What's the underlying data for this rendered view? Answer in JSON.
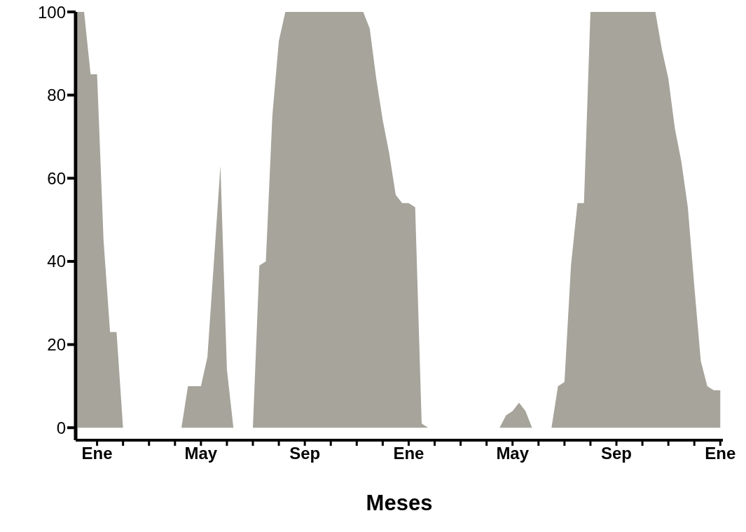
{
  "chart_data": {
    "type": "area",
    "xlabel": "Meses",
    "color": "#a6a49b",
    "categories": [
      null,
      null,
      null,
      "Ene",
      null,
      null,
      null,
      null,
      null,
      null,
      null,
      null,
      null,
      null,
      null,
      null,
      null,
      null,
      null,
      "May",
      null,
      null,
      null,
      null,
      null,
      null,
      null,
      null,
      null,
      null,
      null,
      null,
      null,
      null,
      null,
      "Sep",
      null,
      null,
      null,
      null,
      null,
      null,
      null,
      null,
      null,
      null,
      null,
      null,
      null,
      null,
      null,
      "Ene",
      null,
      null,
      null,
      null,
      null,
      null,
      null,
      null,
      null,
      null,
      null,
      null,
      null,
      null,
      null,
      "May",
      null,
      null,
      null,
      null,
      null,
      null,
      null,
      null,
      null,
      null,
      null,
      null,
      null,
      null,
      null,
      "Sep",
      null,
      null,
      null,
      null,
      null,
      null,
      null,
      null,
      null,
      null,
      null,
      null,
      null,
      null,
      null,
      "Ene"
    ],
    "values": [
      100,
      100,
      85,
      85,
      45,
      23,
      23,
      0,
      0,
      0,
      0,
      0,
      0,
      0,
      0,
      0,
      0,
      10,
      10,
      10,
      17,
      40,
      63,
      14,
      0,
      0,
      0,
      0,
      39,
      40,
      75,
      93,
      100,
      100,
      100,
      100,
      100,
      100,
      100,
      100,
      100,
      100,
      100,
      100,
      100,
      96,
      84,
      74,
      66,
      56,
      54,
      54,
      53,
      1,
      0,
      0,
      0,
      0,
      0,
      0,
      0,
      0,
      0,
      0,
      0,
      0,
      3,
      4,
      6,
      4,
      0,
      0,
      0,
      0,
      10,
      11,
      39,
      54,
      54,
      100,
      100,
      100,
      100,
      100,
      100,
      100,
      100,
      100,
      100,
      100,
      91,
      84,
      72,
      64,
      53,
      34,
      16,
      10,
      9,
      9
    ],
    "ylim": [
      -3,
      100
    ],
    "yticks": [
      0,
      20,
      40,
      60,
      80,
      100
    ],
    "grid": false,
    "legend": false
  }
}
